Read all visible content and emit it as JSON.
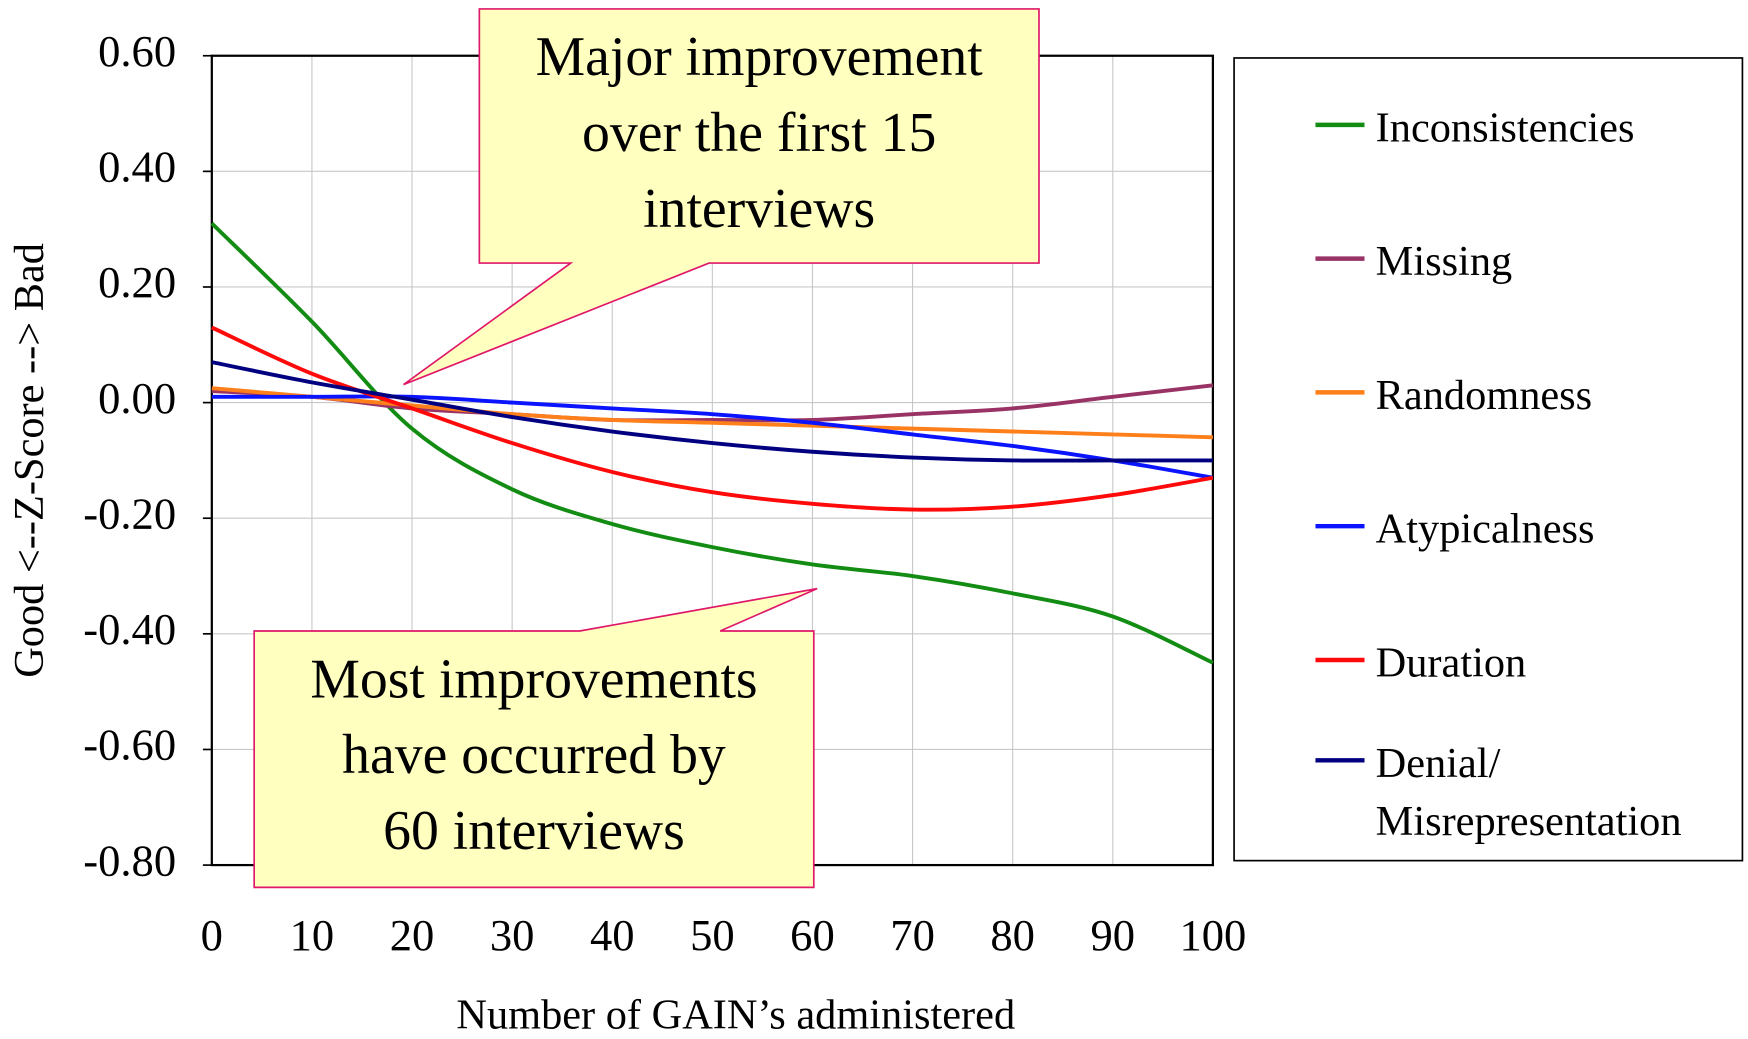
{
  "chart_data": {
    "type": "line",
    "xlabel": "Number of GAIN’s administered",
    "ylabel": "Good <--Z-Score --> Bad",
    "x": [
      0,
      10,
      20,
      30,
      40,
      50,
      60,
      70,
      80,
      90,
      100
    ],
    "series": [
      {
        "name": "Inconsistencies",
        "color": "#138c13",
        "values": [
          0.31,
          0.14,
          -0.045,
          -0.15,
          -0.21,
          -0.25,
          -0.28,
          -0.3,
          -0.33,
          -0.37,
          -0.45
        ]
      },
      {
        "name": "Missing",
        "color": "#993366",
        "values": [
          0.02,
          0.01,
          -0.01,
          -0.02,
          -0.03,
          -0.03,
          -0.03,
          -0.02,
          -0.01,
          0.01,
          0.03
        ]
      },
      {
        "name": "Randomness",
        "color": "#ff7f1a",
        "values": [
          0.025,
          0.01,
          -0.005,
          -0.02,
          -0.03,
          -0.035,
          -0.04,
          -0.045,
          -0.05,
          -0.055,
          -0.06
        ]
      },
      {
        "name": "Atypicalness",
        "color": "#0a14ff",
        "values": [
          0.01,
          0.01,
          0.01,
          0.0,
          -0.01,
          -0.02,
          -0.035,
          -0.055,
          -0.075,
          -0.1,
          -0.13
        ]
      },
      {
        "name": "Duration",
        "color": "#ff0a0a",
        "values": [
          0.13,
          0.05,
          -0.01,
          -0.07,
          -0.12,
          -0.155,
          -0.175,
          -0.185,
          -0.18,
          -0.16,
          -0.13
        ]
      },
      {
        "name": "Denial/ Misrepresentation",
        "color": "#000080",
        "values": [
          0.07,
          0.035,
          0.005,
          -0.025,
          -0.05,
          -0.07,
          -0.085,
          -0.095,
          -0.1,
          -0.1,
          -0.1
        ]
      }
    ],
    "xlim": [
      0,
      100
    ],
    "xticks": [
      0,
      10,
      20,
      30,
      40,
      50,
      60,
      70,
      80,
      90,
      100
    ],
    "ylim": [
      -0.8,
      0.6
    ],
    "yticks": [
      {
        "value": 0.6,
        "label": "0.60"
      },
      {
        "value": 0.4,
        "label": "0.40"
      },
      {
        "value": 0.2,
        "label": "0.20"
      },
      {
        "value": 0,
        "label": "0.00"
      },
      {
        "value": -0.2,
        "label": "-0.20"
      },
      {
        "value": -0.4,
        "label": "-0.40"
      },
      {
        "value": -0.6,
        "label": "-0.60"
      },
      {
        "value": -0.8,
        "label": "-0.80"
      }
    ],
    "grid": true,
    "legend": "right",
    "annotations": [
      {
        "lines": [
          "Major improvement",
          "over the first 15",
          "interviews"
        ]
      },
      {
        "lines": [
          "Most improvements",
          "have occurred by",
          "60 interviews"
        ]
      }
    ]
  }
}
